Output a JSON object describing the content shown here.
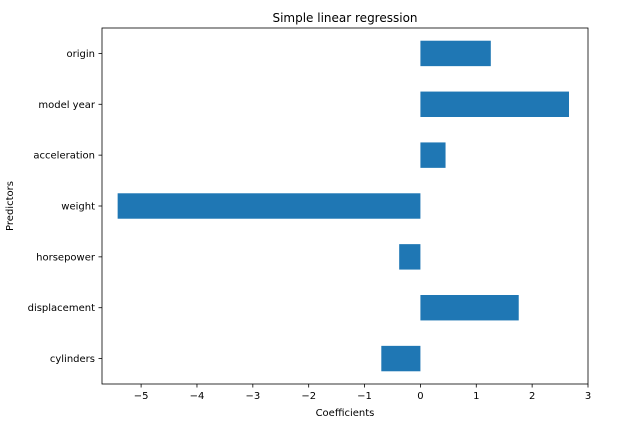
{
  "chart_data": {
    "type": "bar",
    "orientation": "horizontal",
    "title": "Simple linear regression",
    "xlabel": "Coefficients",
    "ylabel": "Predictors",
    "categories": [
      "cylinders",
      "displacement",
      "horsepower",
      "weight",
      "acceleration",
      "model year",
      "origin"
    ],
    "values": [
      -0.7,
      1.76,
      -0.38,
      -5.42,
      0.45,
      2.66,
      1.26
    ],
    "xlim": [
      -5.7,
      3.0
    ],
    "xticks": [
      -5,
      -4,
      -3,
      -2,
      -1,
      0,
      1,
      2,
      3
    ],
    "xtick_labels": [
      "−5",
      "−4",
      "−3",
      "−2",
      "−1",
      "0",
      "1",
      "2",
      "3"
    ],
    "grid": false,
    "bar_color": "#1f77b4"
  }
}
